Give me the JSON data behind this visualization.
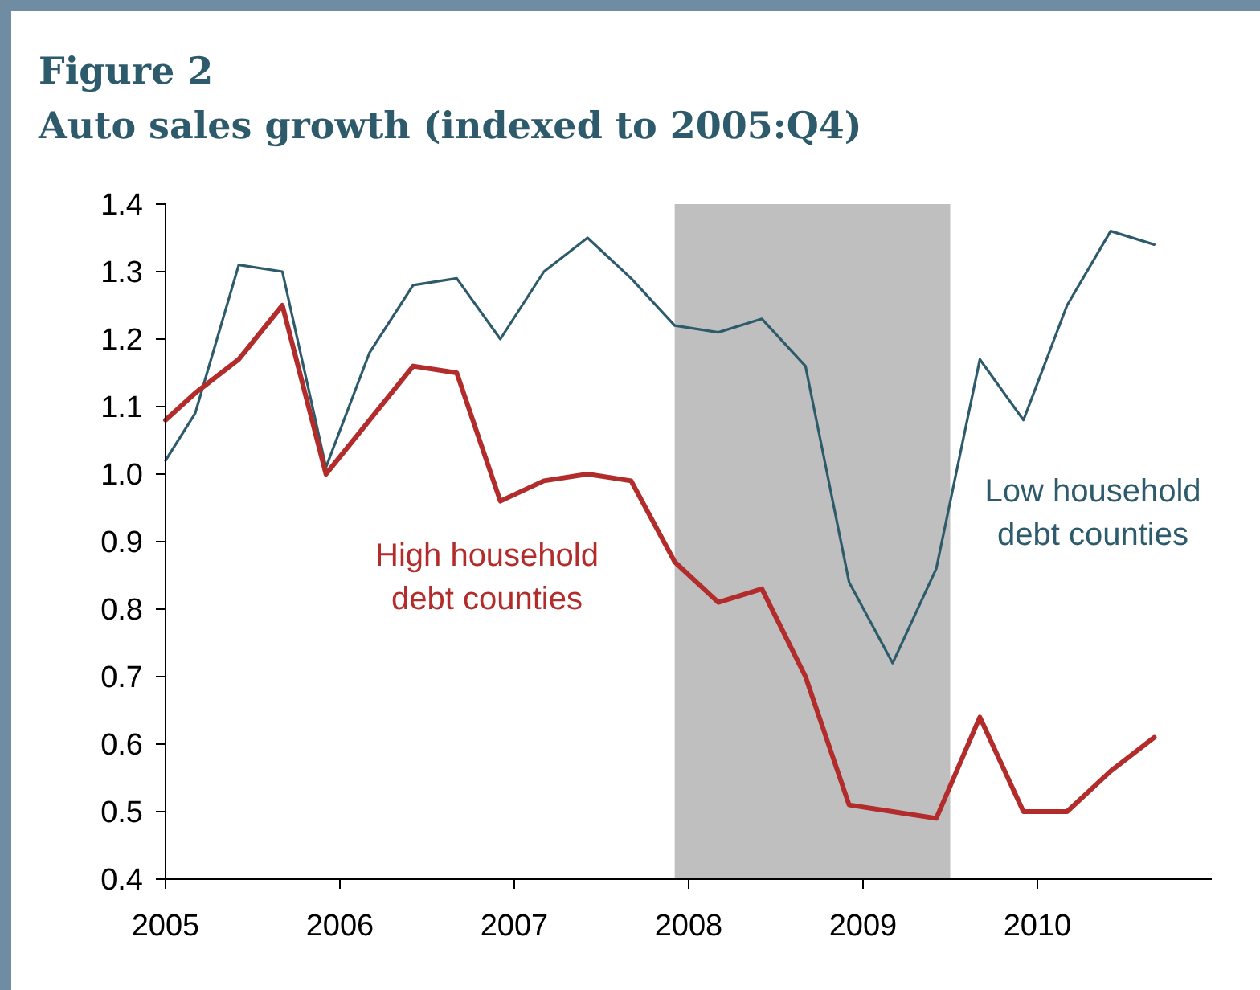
{
  "chart_data": {
    "type": "line",
    "title": "Figure 2",
    "subtitle": "Auto sales growth (indexed to 2005:Q4)",
    "x": [
      2005,
      2005.17,
      2005.42,
      2005.67,
      2005.92,
      2006.17,
      2006.42,
      2006.67,
      2006.92,
      2007.17,
      2007.42,
      2007.67,
      2007.92,
      2008.17,
      2008.42,
      2008.67,
      2008.92,
      2009.17,
      2009.42,
      2009.67,
      2009.92,
      2010.17,
      2010.42,
      2010.67
    ],
    "series": [
      {
        "name": "Low household debt counties",
        "color": "#2d5b6b",
        "values": [
          1.02,
          1.09,
          1.31,
          1.3,
          1.01,
          1.18,
          1.28,
          1.29,
          1.2,
          1.3,
          1.35,
          1.29,
          1.22,
          1.21,
          1.23,
          1.16,
          0.84,
          0.72,
          0.86,
          1.17,
          1.08,
          1.25,
          1.36,
          1.34
        ]
      },
      {
        "name": "High household debt counties",
        "color": "#b22c2c",
        "values": [
          1.08,
          1.12,
          1.17,
          1.25,
          1.0,
          1.08,
          1.16,
          1.15,
          0.96,
          0.99,
          1.0,
          0.99,
          0.87,
          0.81,
          0.83,
          0.7,
          0.51,
          0.5,
          0.49,
          0.64,
          0.5,
          0.5,
          0.56,
          0.61
        ]
      }
    ],
    "xlim": [
      2005,
      2011
    ],
    "xticks": [
      2005,
      2006,
      2007,
      2008,
      2009,
      2010
    ],
    "ylim": [
      0.4,
      1.4
    ],
    "yticks": [
      {
        "value": 0.4,
        "label": "0.4"
      },
      {
        "value": 0.5,
        "label": "0.5"
      },
      {
        "value": 0.6,
        "label": "0.6"
      },
      {
        "value": 0.7,
        "label": "0.7"
      },
      {
        "value": 0.8,
        "label": "0.8"
      },
      {
        "value": 0.9,
        "label": "0.9"
      },
      {
        "value": 1.0,
        "label": "1.0"
      },
      {
        "value": 1.1,
        "label": "1.1"
      },
      {
        "value": 1.2,
        "label": "1.2"
      },
      {
        "value": 1.3,
        "label": "1.3"
      },
      {
        "value": 1.4,
        "label": "1.4"
      }
    ],
    "bands": [
      {
        "axis": "x",
        "from": 2007.92,
        "to": 2009.5,
        "color": "#bfbfbf"
      }
    ],
    "grid": false,
    "marker": "none",
    "line_style": "solid"
  }
}
